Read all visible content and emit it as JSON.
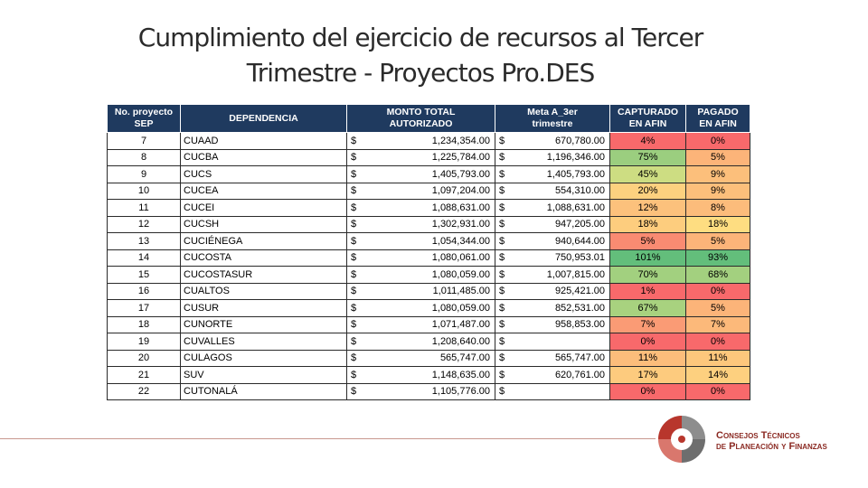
{
  "title": {
    "line1": "Cumplimiento del ejercicio de recursos al Tercer",
    "line2": "Trimestre - Proyectos Pro.DES"
  },
  "table": {
    "headers": {
      "no": [
        "No. proyecto",
        "SEP"
      ],
      "dep": "DEPENDENCIA",
      "monto": [
        "MONTO TOTAL",
        "AUTORIZADO"
      ],
      "meta": [
        "Meta A_3er",
        "trimestre"
      ],
      "capt": [
        "CAPTURADO",
        "EN AFIN"
      ],
      "pag": [
        "PAGADO",
        "EN AFIN"
      ]
    },
    "currency": "$",
    "rows": [
      {
        "no": "7",
        "dep": "CUAAD",
        "monto": "1,234,354.00",
        "meta": "670,780.00",
        "capt": "4%",
        "pag": "0%",
        "capt_color": "#f8696b",
        "pag_color": "#f8696b"
      },
      {
        "no": "8",
        "dep": "CUCBA",
        "monto": "1,225,784.00",
        "meta": "1,196,346.00",
        "capt": "75%",
        "pag": "5%",
        "capt_color": "#9bce7f",
        "pag_color": "#fcb479"
      },
      {
        "no": "9",
        "dep": "CUCS",
        "monto": "1,405,793.00",
        "meta": "1,405,793.00",
        "capt": "45%",
        "pag": "9%",
        "capt_color": "#cddd82",
        "pag_color": "#fcbf7b"
      },
      {
        "no": "10",
        "dep": "CUCEA",
        "monto": "1,097,204.00",
        "meta": "554,310.00",
        "capt": "20%",
        "pag": "9%",
        "capt_color": "#fdd17f",
        "pag_color": "#fcbf7b"
      },
      {
        "no": "11",
        "dep": "CUCEI",
        "monto": "1,088,631.00",
        "meta": "1,088,631.00",
        "capt": "12%",
        "pag": "8%",
        "capt_color": "#fcc17c",
        "pag_color": "#fcbc7b"
      },
      {
        "no": "12",
        "dep": "CUCSH",
        "monto": "1,302,931.00",
        "meta": "947,205.00",
        "capt": "18%",
        "pag": "18%",
        "capt_color": "#fdcd7e",
        "pag_color": "#fedd81"
      },
      {
        "no": "13",
        "dep": "CUCIÉNEGA",
        "monto": "1,054,344.00",
        "meta": "940,644.00",
        "capt": "5%",
        "pag": "5%",
        "capt_color": "#f98b72",
        "pag_color": "#fcb479"
      },
      {
        "no": "14",
        "dep": "CUCOSTA",
        "monto": "1,080,061.00",
        "meta": "750,953.01",
        "capt": "101%",
        "pag": "93%",
        "capt_color": "#63be7b",
        "pag_color": "#63be7b"
      },
      {
        "no": "15",
        "dep": "CUCOSTASUR",
        "monto": "1,080,059.00",
        "meta": "1,007,815.00",
        "capt": "70%",
        "pag": "68%",
        "capt_color": "#a2d07f",
        "pag_color": "#a3d07f"
      },
      {
        "no": "16",
        "dep": "CUALTOS",
        "monto": "1,011,485.00",
        "meta": "925,421.00",
        "capt": "1%",
        "pag": "0%",
        "capt_color": "#f8696b",
        "pag_color": "#f8696b"
      },
      {
        "no": "17",
        "dep": "CUSUR",
        "monto": "1,080,059.00",
        "meta": "852,531.00",
        "capt": "67%",
        "pag": "5%",
        "capt_color": "#a8d27f",
        "pag_color": "#fcb479"
      },
      {
        "no": "18",
        "dep": "CUNORTE",
        "monto": "1,071,487.00",
        "meta": "958,853.00",
        "capt": "7%",
        "pag": "7%",
        "capt_color": "#fa9b75",
        "pag_color": "#fcb97a"
      },
      {
        "no": "19",
        "dep": "CUVALLES",
        "monto": "1,208,640.00",
        "meta": "",
        "capt": "0%",
        "pag": "0%",
        "capt_color": "#f8696b",
        "pag_color": "#f8696b"
      },
      {
        "no": "20",
        "dep": "CULAGOS",
        "monto": "565,747.00",
        "meta": "565,747.00",
        "capt": "11%",
        "pag": "11%",
        "capt_color": "#fcbd7b",
        "pag_color": "#fdc77c"
      },
      {
        "no": "21",
        "dep": "SUV",
        "monto": "1,148,635.00",
        "meta": "620,761.00",
        "capt": "17%",
        "pag": "14%",
        "capt_color": "#fdcb7e",
        "pag_color": "#fdd07f"
      },
      {
        "no": "22",
        "dep": "CUTONALÁ",
        "monto": "1,105,776.00",
        "meta": "",
        "capt": "0%",
        "pag": "0%",
        "capt_color": "#f8696b",
        "pag_color": "#f8696b"
      }
    ]
  },
  "brand": {
    "line1": "Consejos Técnicos",
    "line2": "de Planeación y Finanzas"
  },
  "colors": {
    "header_bg": "#1f3a5f",
    "brand_red": "#8b2a23",
    "divider": "#c8988f"
  }
}
